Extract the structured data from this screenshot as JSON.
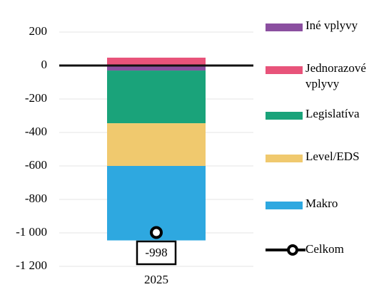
{
  "chart_data": {
    "type": "bar",
    "stacked": true,
    "categories": [
      "2025"
    ],
    "series": [
      {
        "name": "Iné vplyvy",
        "color": "#8b4fa0",
        "values": [
          -30
        ]
      },
      {
        "name": "Jednorazové vplyvy",
        "color": "#e8537a",
        "values": [
          47
        ]
      },
      {
        "name": "Legislatíva",
        "color": "#1aa37a",
        "values": [
          -315
        ]
      },
      {
        "name": "Level/EDS",
        "color": "#f0c96e",
        "values": [
          -255
        ]
      },
      {
        "name": "Makro",
        "color": "#2ea8e0",
        "values": [
          -445
        ]
      },
      {
        "name": "Celkom",
        "type": "line",
        "color": "#000000",
        "values": [
          -998
        ],
        "value_labels": [
          "-998"
        ]
      }
    ],
    "ylim": [
      -1250,
      300
    ],
    "yticks": [
      {
        "value": -1200,
        "label": "-1 200"
      },
      {
        "value": -1000,
        "label": "-1 000"
      },
      -800,
      -600,
      -400,
      -200,
      0,
      200
    ],
    "grid": true,
    "legend": "right"
  }
}
